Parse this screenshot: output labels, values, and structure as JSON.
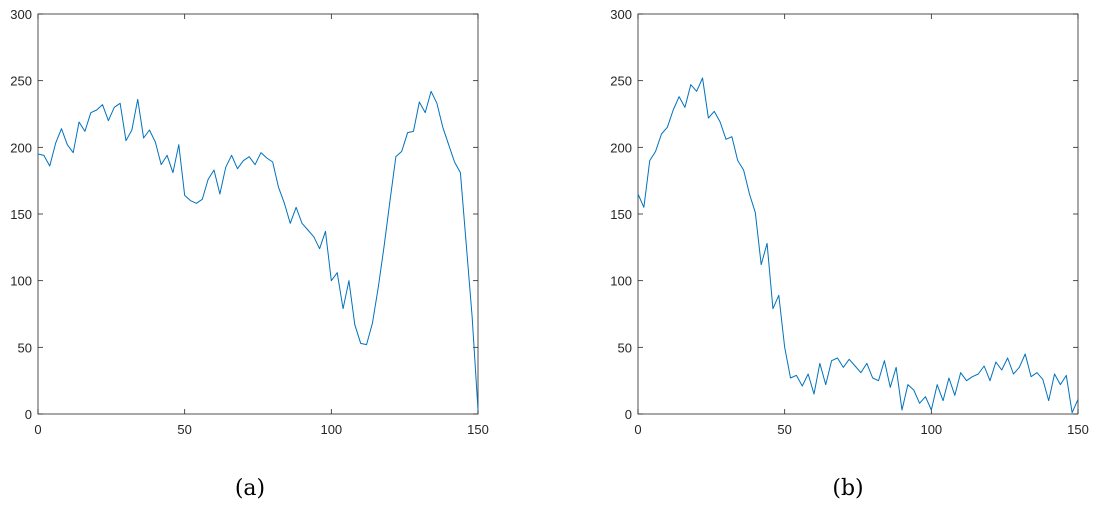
{
  "figure": {
    "captions": [
      "(a)",
      "(b)"
    ]
  },
  "chart_data": [
    {
      "type": "line",
      "title": "",
      "xlabel": "",
      "ylabel": "",
      "xlim": [
        0,
        150
      ],
      "ylim": [
        0,
        300
      ],
      "xticks": [
        0,
        50,
        100,
        150
      ],
      "yticks": [
        0,
        50,
        100,
        150,
        200,
        250,
        300
      ],
      "grid": false,
      "color": "#0072BD",
      "x": [
        0,
        2,
        4,
        6,
        8,
        10,
        12,
        14,
        16,
        18,
        20,
        22,
        24,
        26,
        28,
        30,
        32,
        34,
        36,
        38,
        40,
        42,
        44,
        46,
        48,
        50,
        52,
        54,
        56,
        58,
        60,
        62,
        64,
        66,
        68,
        70,
        72,
        74,
        76,
        78,
        80,
        82,
        84,
        86,
        88,
        90,
        92,
        94,
        96,
        98,
        100,
        102,
        104,
        106,
        108,
        110,
        112,
        114,
        116,
        118,
        120,
        122,
        124,
        126,
        128,
        130,
        132,
        134,
        136,
        138,
        140,
        142,
        144,
        146,
        148,
        150
      ],
      "y": [
        195,
        194,
        186,
        203,
        214,
        202,
        196,
        219,
        212,
        226,
        228,
        232,
        220,
        230,
        233,
        205,
        213,
        236,
        207,
        213,
        204,
        187,
        194,
        181,
        202,
        164,
        160,
        158,
        161,
        176,
        183,
        165,
        185,
        194,
        184,
        190,
        193,
        187,
        196,
        192,
        189,
        170,
        158,
        143,
        155,
        143,
        138,
        133,
        124,
        137,
        100,
        106,
        79,
        100,
        67,
        53,
        52,
        68,
        95,
        126,
        160,
        193,
        197,
        211,
        212,
        234,
        226,
        242,
        233,
        215,
        202,
        189,
        181,
        127,
        73,
        3
      ]
    },
    {
      "type": "line",
      "title": "",
      "xlabel": "",
      "ylabel": "",
      "xlim": [
        0,
        150
      ],
      "ylim": [
        0,
        300
      ],
      "xticks": [
        0,
        50,
        100,
        150
      ],
      "yticks": [
        0,
        50,
        100,
        150,
        200,
        250,
        300
      ],
      "grid": false,
      "color": "#0072BD",
      "x": [
        0,
        2,
        4,
        6,
        8,
        10,
        12,
        14,
        16,
        18,
        20,
        22,
        24,
        26,
        28,
        30,
        32,
        34,
        36,
        38,
        40,
        42,
        44,
        46,
        48,
        50,
        52,
        54,
        56,
        58,
        60,
        62,
        64,
        66,
        68,
        70,
        72,
        74,
        76,
        78,
        80,
        82,
        84,
        86,
        88,
        90,
        92,
        94,
        96,
        98,
        100,
        102,
        104,
        106,
        108,
        110,
        112,
        114,
        116,
        118,
        120,
        122,
        124,
        126,
        128,
        130,
        132,
        134,
        136,
        138,
        140,
        142,
        144,
        146,
        148,
        150
      ],
      "y": [
        165,
        155,
        190,
        197,
        210,
        215,
        228,
        238,
        230,
        247,
        242,
        252,
        222,
        227,
        219,
        206,
        208,
        190,
        183,
        165,
        151,
        112,
        128,
        79,
        89,
        50,
        27,
        29,
        21,
        30,
        15,
        38,
        22,
        40,
        42,
        35,
        41,
        36,
        31,
        38,
        27,
        25,
        40,
        20,
        35,
        3,
        22,
        18,
        8,
        13,
        3,
        22,
        10,
        27,
        14,
        31,
        25,
        28,
        30,
        36,
        25,
        39,
        33,
        42,
        30,
        35,
        45,
        28,
        31,
        26,
        10,
        30,
        22,
        29,
        1,
        11
      ]
    }
  ]
}
